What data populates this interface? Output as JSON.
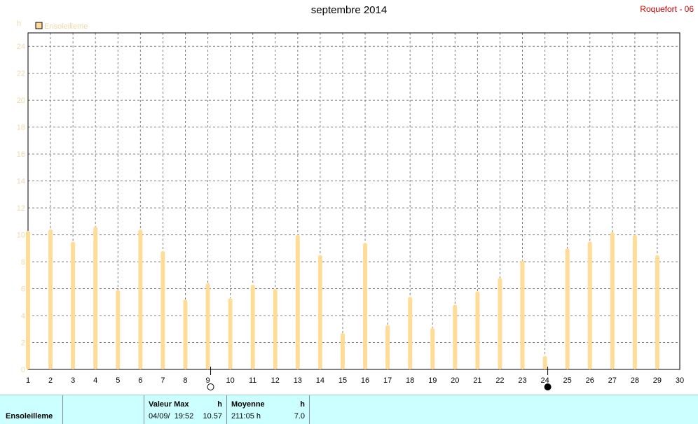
{
  "header": {
    "title": "septembre 2014",
    "station": "Roquefort - 06"
  },
  "colors": {
    "bar": "#ffdd99",
    "legend_swatch": "#ffdd99",
    "axis_label": "#f0d8a8",
    "station": "#cc0000",
    "info_bg": "#ccffff"
  },
  "chart_data": {
    "type": "bar",
    "title": "septembre 2014",
    "ylabel": "h",
    "ylim": [
      0,
      25
    ],
    "yticks": [
      0,
      2,
      4,
      6,
      8,
      10,
      12,
      14,
      16,
      18,
      20,
      22,
      24
    ],
    "xticks": [
      1,
      2,
      3,
      4,
      5,
      6,
      7,
      8,
      9,
      10,
      11,
      12,
      13,
      14,
      15,
      16,
      17,
      18,
      19,
      20,
      21,
      22,
      23,
      24,
      25,
      26,
      27,
      28,
      29,
      30
    ],
    "grid": true,
    "legend": "top-left",
    "series": [
      {
        "name": "Ensoleilleme",
        "x": [
          1,
          2,
          3,
          4,
          5,
          6,
          7,
          8,
          9,
          10,
          11,
          12,
          13,
          14,
          15,
          16,
          17,
          18,
          19,
          20,
          21,
          22,
          23,
          24,
          25,
          26,
          27,
          28,
          29
        ],
        "values": [
          10.3,
          10.4,
          9.5,
          10.6,
          5.9,
          10.4,
          8.8,
          5.2,
          6.4,
          5.3,
          6.3,
          6.0,
          10.0,
          8.5,
          2.7,
          9.4,
          3.3,
          5.4,
          3.1,
          4.8,
          5.8,
          6.8,
          8.1,
          1.0,
          9.0,
          9.5,
          10.2,
          10.0,
          8.5
        ]
      }
    ],
    "moon_phases": [
      {
        "x": 9,
        "phase": "full-moon-icon"
      },
      {
        "x": 24,
        "phase": "new-moon-icon"
      }
    ]
  },
  "info": {
    "series_label": "Ensoleilleme",
    "max_header": "Valeur Max",
    "max_unit": "h",
    "max_date": "04/09/  19:52",
    "max_value": "10.57",
    "avg_header": "Moyenne",
    "avg_unit": "h",
    "avg_total": "211:05 h",
    "avg_value": "7.0"
  }
}
